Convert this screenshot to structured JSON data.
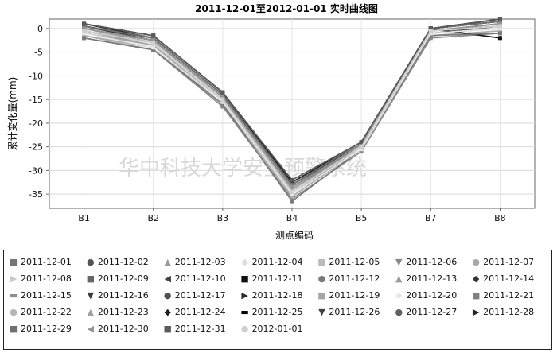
{
  "chart_data": {
    "type": "line",
    "title": "2011-12-01至2012-01-01 实时曲线图",
    "xlabel": "测点编码",
    "ylabel": "累计变化量(mm)",
    "categories": [
      "B1",
      "B2",
      "B3",
      "B4",
      "B5",
      "B7",
      "B8"
    ],
    "ylim": [
      -38,
      2
    ],
    "yticks": [
      0,
      -5,
      -10,
      -15,
      -20,
      -25,
      -30,
      -35
    ],
    "grid": true,
    "legend_position": "bottom",
    "watermark": "华中科技大学安全预警系统",
    "series": [
      {
        "name": "2011-12-01",
        "color": "#777777",
        "marker": "■",
        "values": [
          0.5,
          -2.5,
          -14.5,
          -33.0,
          -24.5,
          -0.5,
          1.0
        ]
      },
      {
        "name": "2011-12-02",
        "color": "#555555",
        "marker": "●",
        "values": [
          0.0,
          -3.0,
          -15.0,
          -34.0,
          -25.0,
          -1.0,
          0.5
        ]
      },
      {
        "name": "2011-12-03",
        "color": "#999999",
        "marker": "▲",
        "values": [
          -0.5,
          -3.5,
          -15.5,
          -34.5,
          -25.0,
          -1.0,
          0.0
        ]
      },
      {
        "name": "2011-12-04",
        "color": "#dddddd",
        "marker": "◆",
        "values": [
          -1.0,
          -4.0,
          -16.0,
          -35.0,
          -25.5,
          -1.5,
          -0.5
        ]
      },
      {
        "name": "2011-12-05",
        "color": "#bbbbbb",
        "marker": "■",
        "values": [
          -1.5,
          -4.5,
          -16.0,
          -35.5,
          -25.5,
          -1.5,
          -0.5
        ]
      },
      {
        "name": "2011-12-06",
        "color": "#888888",
        "marker": "▼",
        "values": [
          -2.0,
          -4.5,
          -16.5,
          -36.0,
          -26.0,
          -2.0,
          -1.0
        ]
      },
      {
        "name": "2011-12-07",
        "color": "#aaaaaa",
        "marker": "●",
        "values": [
          -1.5,
          -4.0,
          -16.0,
          -35.5,
          -25.5,
          -1.5,
          -0.5
        ]
      },
      {
        "name": "2011-12-08",
        "color": "#c8c8c8",
        "marker": "▶",
        "values": [
          -1.0,
          -3.5,
          -15.5,
          -35.0,
          -25.0,
          -1.0,
          0.0
        ]
      },
      {
        "name": "2011-12-09",
        "color": "#666666",
        "marker": "■",
        "values": [
          -0.5,
          -3.0,
          -15.0,
          -34.5,
          -25.0,
          -0.5,
          0.5
        ]
      },
      {
        "name": "2011-12-10",
        "color": "#444444",
        "marker": "◀",
        "values": [
          0.0,
          -2.5,
          -14.5,
          -34.0,
          -24.5,
          -0.5,
          1.0
        ]
      },
      {
        "name": "2011-12-11",
        "color": "#111111",
        "marker": "■",
        "values": [
          0.5,
          -2.0,
          -14.0,
          -33.5,
          -24.5,
          0.0,
          -2.0
        ]
      },
      {
        "name": "2011-12-12",
        "color": "#7a7a7a",
        "marker": "●",
        "values": [
          -2.0,
          -4.5,
          -16.0,
          -36.5,
          -25.5,
          -1.5,
          -1.0
        ]
      },
      {
        "name": "2011-12-13",
        "color": "#9a9a9a",
        "marker": "▲",
        "values": [
          -0.5,
          -3.0,
          -15.0,
          -34.0,
          -25.0,
          -0.5,
          0.5
        ]
      },
      {
        "name": "2011-12-14",
        "color": "#333333",
        "marker": "◆",
        "values": [
          1.0,
          -2.0,
          -14.0,
          -33.0,
          -24.5,
          0.0,
          1.5
        ]
      },
      {
        "name": "2011-12-15",
        "color": "#8c8c8c",
        "marker": "▬",
        "values": [
          0.0,
          -3.0,
          -15.0,
          -34.0,
          -25.0,
          -0.5,
          1.0
        ]
      },
      {
        "name": "2011-12-16",
        "color": "#3a3a3a",
        "marker": "▼",
        "values": [
          0.5,
          -2.5,
          -14.5,
          -33.5,
          -24.5,
          0.0,
          1.5
        ]
      },
      {
        "name": "2011-12-17",
        "color": "#505050",
        "marker": "●",
        "values": [
          0.0,
          -2.5,
          -14.5,
          -33.5,
          -24.5,
          -0.5,
          1.0
        ]
      },
      {
        "name": "2011-12-18",
        "color": "#2a2a2a",
        "marker": "▶",
        "values": [
          0.5,
          -2.0,
          -14.0,
          -33.0,
          -24.0,
          0.0,
          1.5
        ]
      },
      {
        "name": "2011-12-19",
        "color": "#a5a5a5",
        "marker": "■",
        "values": [
          -1.0,
          -3.5,
          -15.5,
          -35.0,
          -25.0,
          -1.0,
          0.0
        ]
      },
      {
        "name": "2011-12-20",
        "color": "#e6e6e6",
        "marker": "◆",
        "values": [
          -1.0,
          -4.0,
          -15.5,
          -35.0,
          -25.5,
          -1.0,
          0.0
        ]
      },
      {
        "name": "2011-12-21",
        "color": "#808080",
        "marker": "■",
        "values": [
          0.0,
          -2.5,
          -14.5,
          -34.0,
          -24.5,
          -0.5,
          1.0
        ]
      },
      {
        "name": "2011-12-22",
        "color": "#b5b5b5",
        "marker": "●",
        "values": [
          -0.5,
          -3.0,
          -15.0,
          -34.5,
          -25.0,
          -0.5,
          0.5
        ]
      },
      {
        "name": "2011-12-23",
        "color": "#a0a0a0",
        "marker": "▲",
        "values": [
          0.0,
          -3.0,
          -15.0,
          -34.0,
          -25.0,
          -0.5,
          0.5
        ]
      },
      {
        "name": "2011-12-24",
        "color": "#1e1e1e",
        "marker": "◆",
        "values": [
          1.0,
          -1.5,
          -13.5,
          -32.5,
          -24.0,
          0.0,
          2.0
        ]
      },
      {
        "name": "2011-12-25",
        "color": "#000000",
        "marker": "▬",
        "values": [
          0.5,
          -2.0,
          -14.0,
          -33.0,
          -24.0,
          0.0,
          1.5
        ]
      },
      {
        "name": "2011-12-26",
        "color": "#404040",
        "marker": "▼",
        "values": [
          0.5,
          -2.0,
          -14.0,
          -33.0,
          -24.5,
          0.0,
          1.5
        ]
      },
      {
        "name": "2011-12-27",
        "color": "#606060",
        "marker": "●",
        "values": [
          0.5,
          -2.0,
          -14.0,
          -33.0,
          -24.0,
          0.0,
          1.5
        ]
      },
      {
        "name": "2011-12-28",
        "color": "#252525",
        "marker": "▶",
        "values": [
          1.0,
          -1.5,
          -13.5,
          -32.5,
          -24.0,
          0.0,
          2.0
        ]
      },
      {
        "name": "2011-12-29",
        "color": "#707070",
        "marker": "■",
        "values": [
          0.5,
          -2.0,
          -14.0,
          -33.0,
          -24.0,
          0.0,
          1.5
        ]
      },
      {
        "name": "2011-12-30",
        "color": "#959595",
        "marker": "◀",
        "values": [
          0.0,
          -2.5,
          -14.5,
          -33.5,
          -24.5,
          -0.5,
          1.0
        ]
      },
      {
        "name": "2011-12-31",
        "color": "#5a5a5a",
        "marker": "■",
        "values": [
          1.0,
          -1.5,
          -13.5,
          -32.0,
          -24.0,
          0.0,
          2.0
        ]
      },
      {
        "name": "2012-01-01",
        "color": "#d0d0d0",
        "marker": "●",
        "values": [
          -0.5,
          -3.0,
          -15.0,
          -34.5,
          -25.0,
          -0.5,
          0.5
        ]
      }
    ]
  }
}
